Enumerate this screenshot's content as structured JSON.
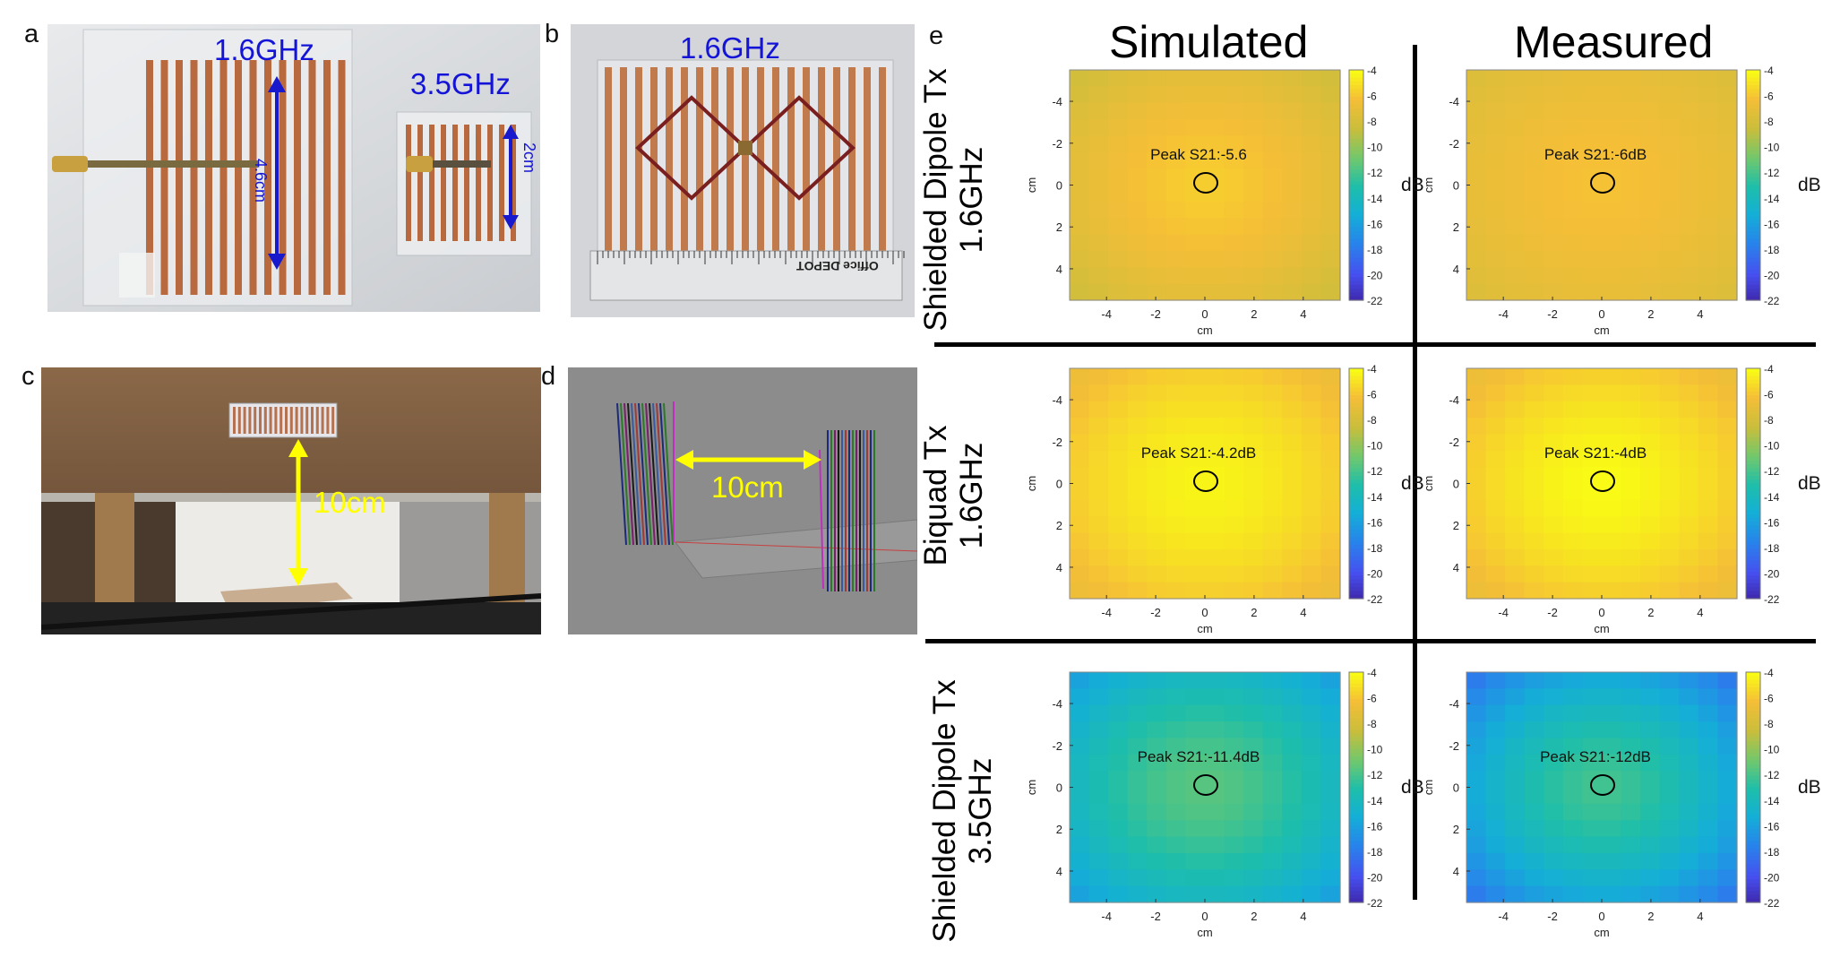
{
  "panel_labels": {
    "a": "a",
    "b": "b",
    "c": "c",
    "d": "d",
    "e": "e"
  },
  "panel_a": {
    "freq_large": "1.6GHz",
    "freq_small": "3.5GHz",
    "dim_large": "4.6cm",
    "dim_small": "2cm"
  },
  "panel_b": {
    "freq": "1.6GHz",
    "ruler_brand": "Office DEPOT"
  },
  "panel_c": {
    "distance": "10cm"
  },
  "panel_d": {
    "distance": "10cm"
  },
  "panel_e": {
    "col_headers": [
      "Simulated",
      "Measured"
    ],
    "row_labels": [
      {
        "line1": "Shielded Dipole Tx",
        "line2": "1.6GHz"
      },
      {
        "line1": "Biquad Tx",
        "line2": "1.6GHz"
      },
      {
        "line1": "Shielded Dipole Tx",
        "line2": "3.5GHz"
      }
    ],
    "colors": {
      "divider": "#000000"
    }
  },
  "chart_data": [
    {
      "type": "heatmap",
      "id": "sim-1",
      "row": 0,
      "col": 0,
      "annotation": "Peak S21:-5.6",
      "xlabel": "cm",
      "ylabel": "cm",
      "xticks": [
        "-4",
        "-2",
        "0",
        "2",
        "4"
      ],
      "yticks": [
        "-4",
        "-2",
        "0",
        "2",
        "4"
      ],
      "colorbar_label": "dB",
      "colorbar_ticks": [
        "-4",
        "-6",
        "-8",
        "-10",
        "-12",
        "-14",
        "-16",
        "-18",
        "-20",
        "-22"
      ],
      "clim": [
        -22,
        -4
      ],
      "peak": -5.6,
      "edge": -8.3
    },
    {
      "type": "heatmap",
      "id": "meas-1",
      "row": 0,
      "col": 1,
      "annotation": "Peak S21:-6dB",
      "xlabel": "cm",
      "ylabel": "cm",
      "xticks": [
        "-4",
        "-2",
        "0",
        "2",
        "4"
      ],
      "yticks": [
        "-4",
        "-2",
        "0",
        "2",
        "4"
      ],
      "colorbar_label": "dB",
      "colorbar_ticks": [
        "-4",
        "-6",
        "-8",
        "-10",
        "-12",
        "-14",
        "-16",
        "-18",
        "-20",
        "-22"
      ],
      "clim": [
        -22,
        -4
      ],
      "peak": -6,
      "edge": -7.6
    },
    {
      "type": "heatmap",
      "id": "sim-2",
      "row": 1,
      "col": 0,
      "annotation": "Peak S21:-4.2dB",
      "xlabel": "cm",
      "ylabel": "cm",
      "xticks": [
        "-4",
        "-2",
        "0",
        "2",
        "4"
      ],
      "yticks": [
        "-4",
        "-2",
        "0",
        "2",
        "4"
      ],
      "colorbar_label": "dB",
      "colorbar_ticks": [
        "-4",
        "-6",
        "-8",
        "-10",
        "-12",
        "-14",
        "-16",
        "-18",
        "-20",
        "-22"
      ],
      "clim": [
        -22,
        -4
      ],
      "peak": -4.2,
      "edge": -6.8
    },
    {
      "type": "heatmap",
      "id": "meas-2",
      "row": 1,
      "col": 1,
      "annotation": "Peak S21:-4dB",
      "xlabel": "cm",
      "ylabel": "cm",
      "xticks": [
        "-4",
        "-2",
        "0",
        "2",
        "4"
      ],
      "yticks": [
        "-4",
        "-2",
        "0",
        "2",
        "4"
      ],
      "colorbar_label": "dB",
      "colorbar_ticks": [
        "-4",
        "-6",
        "-8",
        "-10",
        "-12",
        "-14",
        "-16",
        "-18",
        "-20",
        "-22"
      ],
      "clim": [
        -22,
        -4
      ],
      "peak": -4,
      "edge": -6.9
    },
    {
      "type": "heatmap",
      "id": "sim-3",
      "row": 2,
      "col": 0,
      "annotation": "Peak S21:-11.4dB",
      "xlabel": "cm",
      "ylabel": "cm",
      "xticks": [
        "-4",
        "-2",
        "0",
        "2",
        "4"
      ],
      "yticks": [
        "-4",
        "-2",
        "0",
        "2",
        "4"
      ],
      "colorbar_label": "dB",
      "colorbar_ticks": [
        "-4",
        "-6",
        "-8",
        "-10",
        "-12",
        "-14",
        "-16",
        "-18",
        "-20",
        "-22"
      ],
      "clim": [
        -22,
        -4
      ],
      "peak": -11.4,
      "edge": -16.4
    },
    {
      "type": "heatmap",
      "id": "meas-3",
      "row": 2,
      "col": 1,
      "annotation": "Peak S21:-12dB",
      "xlabel": "cm",
      "ylabel": "cm",
      "xticks": [
        "-4",
        "-2",
        "0",
        "2",
        "4"
      ],
      "yticks": [
        "-4",
        "-2",
        "0",
        "2",
        "4"
      ],
      "colorbar_label": "dB",
      "colorbar_ticks": [
        "-4",
        "-6",
        "-8",
        "-10",
        "-12",
        "-14",
        "-16",
        "-18",
        "-20",
        "-22"
      ],
      "clim": [
        -22,
        -4
      ],
      "peak": -12,
      "edge": -18.5
    }
  ]
}
